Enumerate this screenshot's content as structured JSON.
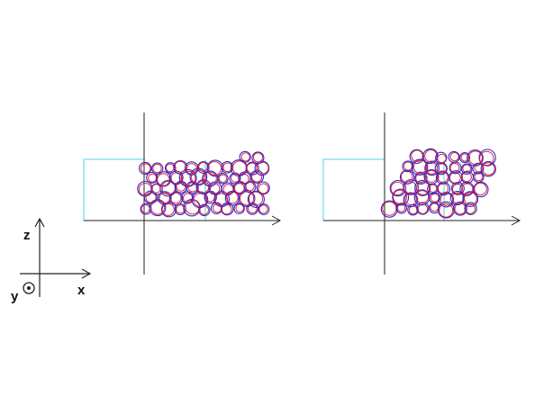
{
  "coordinate_frame": {
    "vertical_axis_label": "z",
    "horizontal_axis_label": "x",
    "out_of_plane_axis_label": "y",
    "out_of_plane_icon": "dot-in-circle-icon"
  },
  "colors": {
    "background": "#ffffff",
    "axis_line": "#222222",
    "domain_outline": "#4fd6e0",
    "particle_inner": "#e0203a",
    "particle_outer": "#2a2ac8"
  },
  "panels": [
    {
      "name": "left-panel",
      "state": "initial packing"
    },
    {
      "name": "right-panel",
      "state": "sheared packing"
    }
  ]
}
